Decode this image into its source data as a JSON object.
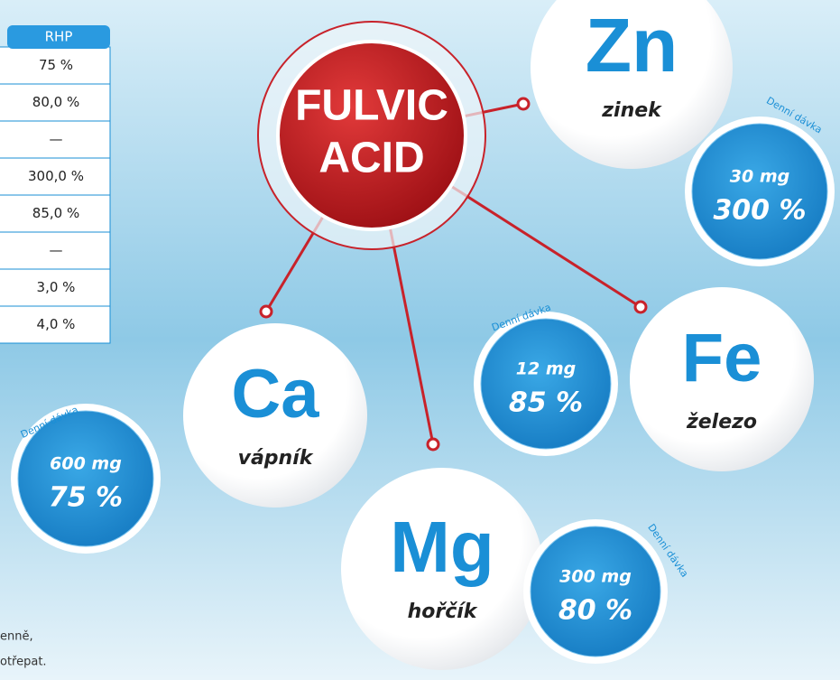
{
  "table": {
    "header": "RHP",
    "rows": [
      "75 %",
      "80,0 %",
      "—",
      "300,0 %",
      "85,0 %",
      "—",
      "3,0 %",
      "4,0 %"
    ]
  },
  "center": {
    "line1": "FULVIC",
    "line2": "ACID"
  },
  "elements": [
    {
      "symbol": "Zn",
      "name": "zinek",
      "label": "Denní dávka",
      "amount": "30 mg",
      "percent": "300 %"
    },
    {
      "symbol": "Fe",
      "name": "železo",
      "label": "Denní dávka",
      "amount": "12 mg",
      "percent": "85 %"
    },
    {
      "symbol": "Ca",
      "name": "vápník",
      "label": "Denní dávka",
      "amount": "600 mg",
      "percent": "75 %"
    },
    {
      "symbol": "Mg",
      "name": "hořčík",
      "label": "Denní dávka",
      "amount": "300 mg",
      "percent": "80 %"
    }
  ],
  "footer": {
    "line1": "enně,",
    "line2": "otřepat."
  }
}
